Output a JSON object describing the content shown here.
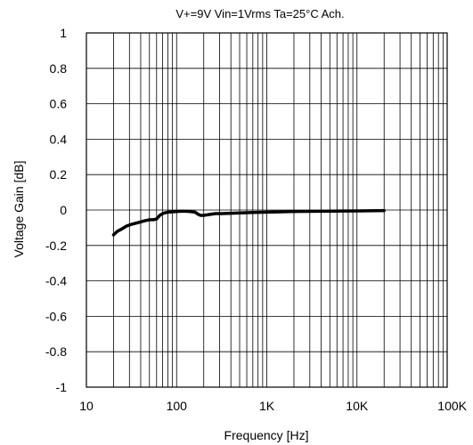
{
  "chart_data": {
    "type": "line",
    "title": "V+=9V Vin=1Vrms Ta=25°C Ach.",
    "xlabel": "Frequency [Hz]",
    "ylabel": "Voltage Gain [dB]",
    "x_scale": "log",
    "xlim": [
      10,
      100000
    ],
    "ylim": [
      -1,
      1
    ],
    "grid": true,
    "x_ticks": [
      10,
      100,
      1000,
      10000,
      100000
    ],
    "x_tick_labels": [
      "10",
      "100",
      "1K",
      "10K",
      "100K"
    ],
    "y_ticks": [
      1,
      0.8,
      0.6,
      0.4,
      0.2,
      0,
      -0.2,
      -0.4,
      -0.6,
      -0.8,
      -1
    ],
    "y_tick_labels": [
      "1",
      "0.8",
      "0.6",
      "0.4",
      "0.2",
      "0",
      "-0.2",
      "-0.4",
      "-0.6",
      "-0.8",
      "-1"
    ],
    "series": [
      {
        "color": "#000000",
        "x": [
          20,
          22,
          25,
          28,
          32,
          38,
          45,
          50,
          55,
          60,
          65,
          70,
          75,
          80,
          90,
          100,
          120,
          140,
          160,
          175,
          185,
          200,
          230,
          270,
          320,
          400,
          500,
          700,
          1000,
          2000,
          5000,
          10000,
          20000
        ],
        "y": [
          -0.14,
          -0.12,
          -0.105,
          -0.09,
          -0.08,
          -0.07,
          -0.06,
          -0.055,
          -0.055,
          -0.05,
          -0.03,
          -0.02,
          -0.015,
          -0.012,
          -0.01,
          -0.008,
          -0.006,
          -0.008,
          -0.012,
          -0.025,
          -0.03,
          -0.03,
          -0.025,
          -0.02,
          -0.02,
          -0.018,
          -0.016,
          -0.014,
          -0.012,
          -0.008,
          -0.006,
          -0.005,
          -0.003
        ]
      }
    ]
  }
}
